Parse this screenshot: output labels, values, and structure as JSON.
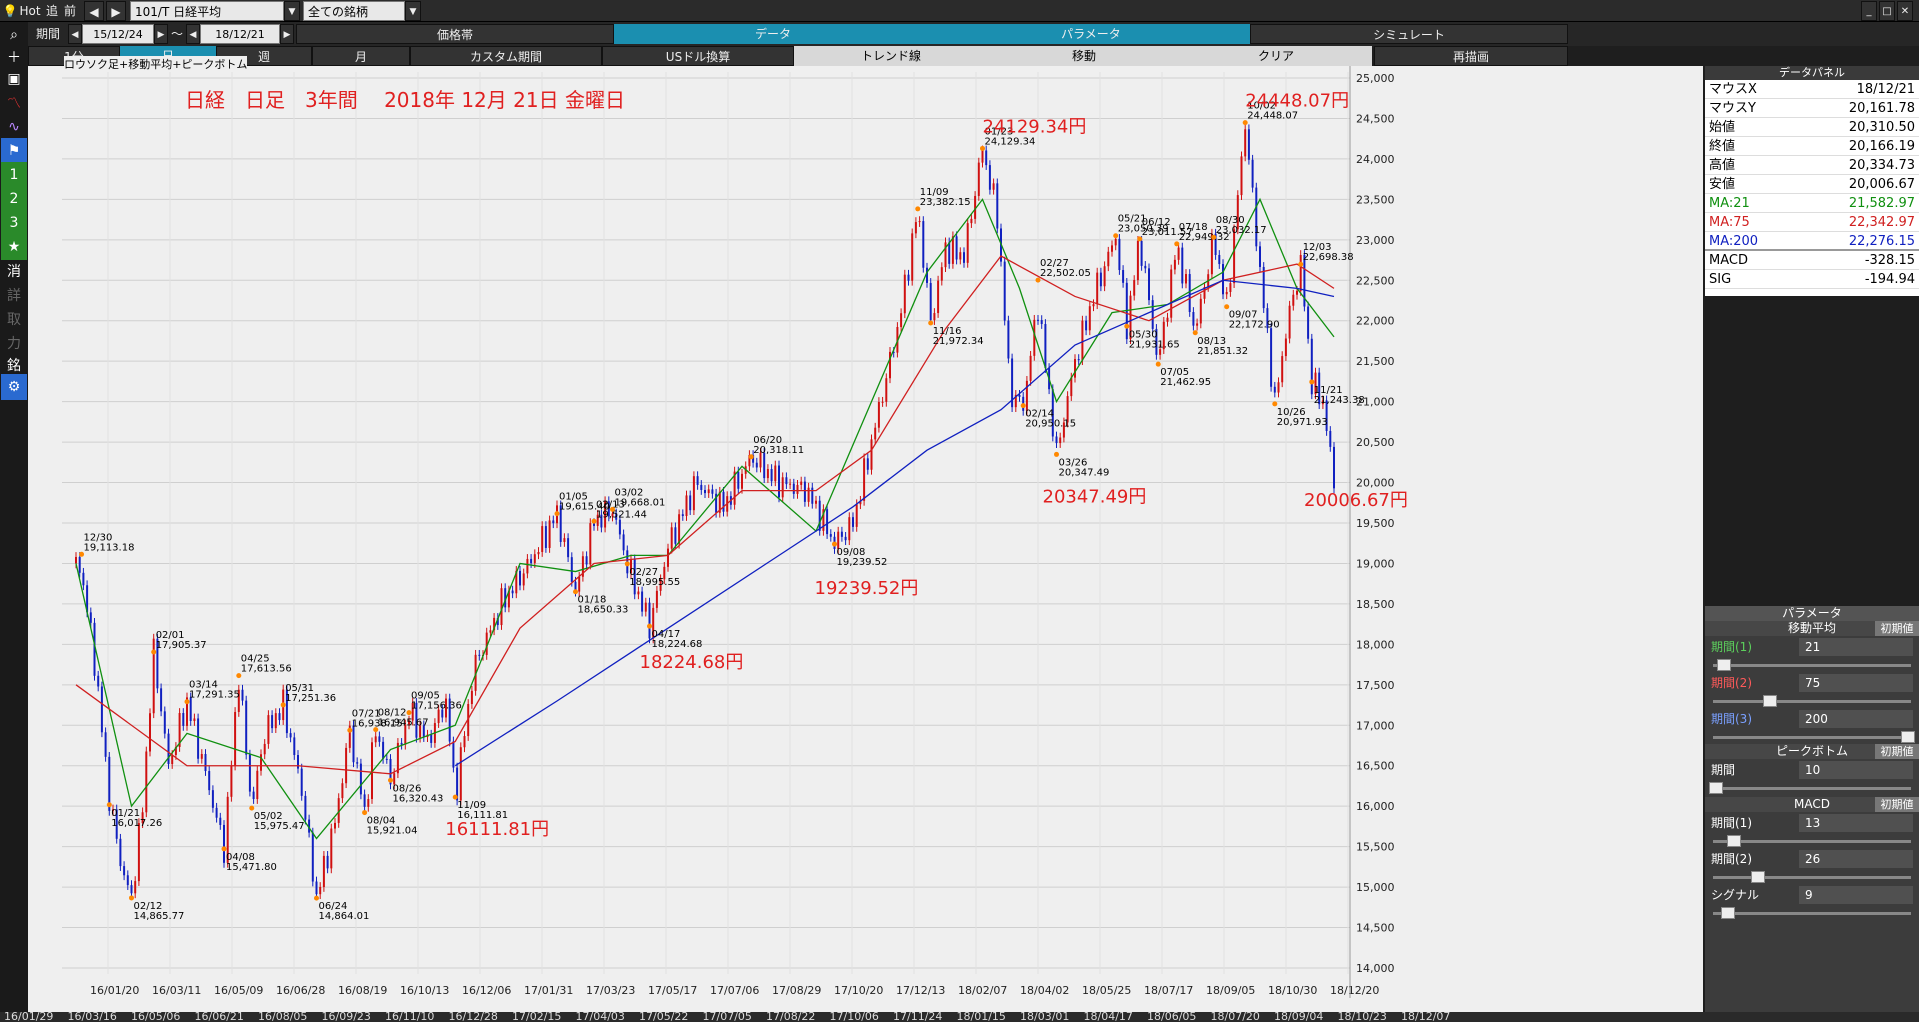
{
  "toolbar": {
    "hot": "Hot",
    "nav1": "追",
    "nav2": "前",
    "symbol": "101/T 日経平均",
    "filter": "全ての銘柄",
    "period_label": "期間",
    "start": "15/12/24",
    "sep": "～",
    "end": "18/12/21",
    "tabs": [
      "価格帯",
      "データ",
      "パラメータ",
      "シミュレート"
    ]
  },
  "timeframes": [
    "1分",
    "日",
    "週",
    "月",
    "カスタム期間",
    "USドル換算",
    "トレンド線",
    "移動",
    "クリア",
    "再描画"
  ],
  "left_tools": [
    "search-icon",
    "plus-icon",
    "camera-icon",
    "chart-icon",
    "wave-icon",
    "flag-icon",
    "1",
    "2",
    "3",
    "star-icon",
    "消",
    "詳",
    "取",
    "力",
    "銘",
    "gear-icon"
  ],
  "chart_data": {
    "type": "line",
    "title": "日経　日足　3年間　 2018年 12月 21日 金曜日",
    "subtitle": "ロウソク足+移動平均+ピークボトム",
    "ylim": [
      14000,
      25000
    ],
    "y_ticks": [
      "25,000",
      "24,500",
      "24,000",
      "23,500",
      "23,000",
      "22,500",
      "22,000",
      "21,500",
      "21,000",
      "20,500",
      "20,000",
      "19,500",
      "19,000",
      "18,500",
      "18,000",
      "17,500",
      "17,000",
      "16,500",
      "16,000",
      "15,500",
      "15,000",
      "14,500",
      "14,000"
    ],
    "x_ticks": [
      "16/01/20",
      "16/03/11",
      "16/05/09",
      "16/06/28",
      "16/08/19",
      "16/10/13",
      "16/12/06",
      "17/01/31",
      "17/03/23",
      "17/05/17",
      "17/07/06",
      "17/08/29",
      "17/10/20",
      "17/12/13",
      "18/02/07",
      "18/04/02",
      "18/05/25",
      "18/07/17",
      "18/09/05",
      "18/10/30",
      "18/12/20"
    ],
    "series": [
      {
        "name": "ロウソク足",
        "color": "#d01010",
        "values": [
          [
            0,
            19000
          ],
          [
            3,
            18900
          ],
          [
            10,
            17800
          ],
          [
            18,
            16100
          ],
          [
            25,
            15200
          ],
          [
            30,
            14866
          ],
          [
            36,
            16000
          ],
          [
            42,
            17900
          ],
          [
            50,
            16500
          ],
          [
            60,
            17291
          ],
          [
            70,
            16400
          ],
          [
            80,
            15472
          ],
          [
            88,
            17614
          ],
          [
            95,
            15975
          ],
          [
            102,
            16900
          ],
          [
            112,
            17251
          ],
          [
            122,
            16200
          ],
          [
            130,
            14864
          ],
          [
            140,
            15800
          ],
          [
            148,
            16938
          ],
          [
            156,
            15921
          ],
          [
            162,
            16945
          ],
          [
            170,
            16320
          ],
          [
            180,
            17156
          ],
          [
            190,
            16800
          ],
          [
            200,
            17300
          ],
          [
            205,
            16112
          ],
          [
            215,
            17700
          ],
          [
            230,
            18500
          ],
          [
            245,
            19000
          ],
          [
            260,
            19615
          ],
          [
            270,
            18650
          ],
          [
            280,
            19521
          ],
          [
            290,
            19668
          ],
          [
            298,
            18996
          ],
          [
            310,
            18224
          ],
          [
            320,
            19200
          ],
          [
            335,
            20000
          ],
          [
            350,
            19700
          ],
          [
            365,
            20318
          ],
          [
            380,
            20000
          ],
          [
            395,
            19900
          ],
          [
            410,
            19240
          ],
          [
            420,
            19500
          ],
          [
            430,
            20500
          ],
          [
            445,
            22000
          ],
          [
            455,
            23382
          ],
          [
            462,
            21972
          ],
          [
            470,
            22900
          ],
          [
            480,
            22800
          ],
          [
            490,
            24129
          ],
          [
            498,
            23300
          ],
          [
            505,
            21100
          ],
          [
            512,
            20950
          ],
          [
            520,
            22200
          ],
          [
            530,
            20347
          ],
          [
            540,
            21500
          ],
          [
            550,
            22300
          ],
          [
            562,
            23050
          ],
          [
            568,
            21932
          ],
          [
            575,
            23012
          ],
          [
            585,
            21463
          ],
          [
            595,
            22949
          ],
          [
            605,
            21851
          ],
          [
            615,
            23032
          ],
          [
            622,
            22173
          ],
          [
            632,
            24448
          ],
          [
            640,
            22600
          ],
          [
            648,
            20972
          ],
          [
            655,
            22000
          ],
          [
            662,
            22698
          ],
          [
            668,
            21243
          ],
          [
            674,
            21000
          ],
          [
            680,
            20007
          ]
        ]
      },
      {
        "name": "MA:21",
        "color": "#109010",
        "values": [
          [
            0,
            19000
          ],
          [
            30,
            16000
          ],
          [
            60,
            16900
          ],
          [
            100,
            16600
          ],
          [
            130,
            15600
          ],
          [
            170,
            16700
          ],
          [
            205,
            17000
          ],
          [
            240,
            19000
          ],
          [
            270,
            18900
          ],
          [
            300,
            19100
          ],
          [
            320,
            19100
          ],
          [
            360,
            20200
          ],
          [
            400,
            19400
          ],
          [
            430,
            21000
          ],
          [
            460,
            22600
          ],
          [
            490,
            23500
          ],
          [
            510,
            22400
          ],
          [
            530,
            21000
          ],
          [
            560,
            22100
          ],
          [
            590,
            22200
          ],
          [
            620,
            22600
          ],
          [
            640,
            23500
          ],
          [
            660,
            22400
          ],
          [
            680,
            21800
          ]
        ]
      },
      {
        "name": "MA:75",
        "color": "#d02020",
        "values": [
          [
            0,
            17500
          ],
          [
            60,
            16500
          ],
          [
            120,
            16500
          ],
          [
            170,
            16400
          ],
          [
            205,
            16800
          ],
          [
            240,
            18200
          ],
          [
            280,
            19000
          ],
          [
            320,
            19100
          ],
          [
            360,
            19900
          ],
          [
            400,
            19900
          ],
          [
            430,
            20400
          ],
          [
            470,
            21900
          ],
          [
            500,
            22800
          ],
          [
            540,
            22300
          ],
          [
            580,
            22000
          ],
          [
            620,
            22500
          ],
          [
            660,
            22700
          ],
          [
            680,
            22400
          ]
        ]
      },
      {
        "name": "MA:200",
        "color": "#1020c0",
        "values": [
          [
            205,
            16500
          ],
          [
            260,
            17300
          ],
          [
            320,
            18200
          ],
          [
            380,
            19100
          ],
          [
            420,
            19700
          ],
          [
            460,
            20400
          ],
          [
            500,
            20900
          ],
          [
            540,
            21700
          ],
          [
            580,
            22100
          ],
          [
            620,
            22500
          ],
          [
            660,
            22400
          ],
          [
            680,
            22300
          ]
        ]
      }
    ],
    "peaks": [
      {
        "date": "12/30",
        "value": "19,113.18"
      },
      {
        "date": "02/01",
        "value": "17,905.37"
      },
      {
        "date": "03/14",
        "value": "17,291.35"
      },
      {
        "date": "04/25",
        "value": "17,613.56"
      },
      {
        "date": "05/31",
        "value": "17,251.36"
      },
      {
        "date": "07/21",
        "value": "16,938.15"
      },
      {
        "date": "08/12",
        "value": "16,945.67"
      },
      {
        "date": "09/05",
        "value": "17,156.36"
      },
      {
        "date": "01/05",
        "value": "19,615.40"
      },
      {
        "date": "02/13",
        "value": "19,521.44"
      },
      {
        "date": "03/02",
        "value": "19,668.01"
      },
      {
        "date": "06/20",
        "value": "20,318.11"
      },
      {
        "date": "11/09",
        "value": "23,382.15"
      },
      {
        "date": "01/23",
        "value": "24,129.34"
      },
      {
        "date": "02/27",
        "value": "22,502.05"
      },
      {
        "date": "05/21",
        "value": "23,050.39"
      },
      {
        "date": "06/12",
        "value": "23,011.57"
      },
      {
        "date": "07/18",
        "value": "22,949.32"
      },
      {
        "date": "08/30",
        "value": "23,032.17"
      },
      {
        "date": "10/02",
        "value": "24,448.07"
      },
      {
        "date": "12/03",
        "value": "22,698.38"
      }
    ],
    "troughs": [
      {
        "date": "01/21",
        "value": "16,017.26"
      },
      {
        "date": "02/12",
        "value": "14,865.77"
      },
      {
        "date": "04/08",
        "value": "15,471.80"
      },
      {
        "date": "05/02",
        "value": "15,975.47"
      },
      {
        "date": "06/24",
        "value": "14,864.01"
      },
      {
        "date": "08/04",
        "value": "15,921.04"
      },
      {
        "date": "08/26",
        "value": "16,320.43"
      },
      {
        "date": "11/09",
        "value": "16,111.81"
      },
      {
        "date": "01/18",
        "value": "18,650.33"
      },
      {
        "date": "02/27",
        "value": "18,995.55"
      },
      {
        "date": "04/17",
        "value": "18,224.68"
      },
      {
        "date": "09/08",
        "value": "19,239.52"
      },
      {
        "date": "11/16",
        "value": "21,972.34"
      },
      {
        "date": "02/14",
        "value": "20,950.15"
      },
      {
        "date": "03/26",
        "value": "20,347.49"
      },
      {
        "date": "05/30",
        "value": "21,931.65"
      },
      {
        "date": "07/05",
        "value": "21,462.95"
      },
      {
        "date": "08/13",
        "value": "21,851.32"
      },
      {
        "date": "09/07",
        "value": "22,172.90"
      },
      {
        "date": "10/26",
        "value": "20,971.93"
      },
      {
        "date": "11/21",
        "value": "21,243.38"
      }
    ],
    "annotations": [
      "24129.34円",
      "24448.07円",
      "16111.81円",
      "18224.68円",
      "19239.52円",
      "20347.49円",
      "20006.67円"
    ]
  },
  "data_panel": {
    "title": "データパネル",
    "rows": [
      {
        "k": "マウスX",
        "v": "18/12/21",
        "c": "#000000"
      },
      {
        "k": "マウスY",
        "v": "20,161.78",
        "c": "#000000"
      },
      {
        "k": "始値",
        "v": "20,310.50",
        "c": "#000000"
      },
      {
        "k": "終値",
        "v": "20,166.19",
        "c": "#000000"
      },
      {
        "k": "高値",
        "v": "20,334.73",
        "c": "#000000"
      },
      {
        "k": "安値",
        "v": "20,006.67",
        "c": "#000000"
      },
      {
        "k": "MA:21",
        "v": "21,582.97",
        "c": "#109010"
      },
      {
        "k": "MA:75",
        "v": "22,342.97",
        "c": "#d02020"
      },
      {
        "k": "MA:200",
        "v": "22,276.15",
        "c": "#1020c0"
      },
      {
        "k": "MACD",
        "v": "-328.15",
        "c": "#000000"
      },
      {
        "k": "SIG",
        "v": "-194.94",
        "c": "#000000"
      }
    ]
  },
  "params": {
    "title": "パラメータ",
    "init": "初期値",
    "ma": {
      "title": "移動平均",
      "p1": "期間(1)",
      "v1": "21",
      "p2": "期間(2)",
      "v2": "75",
      "p3": "期間(3)",
      "v3": "200"
    },
    "pb": {
      "title": "ピークボトム",
      "p": "期間",
      "v": "10"
    },
    "macd": {
      "title": "MACD",
      "p1": "期間(1)",
      "v1": "13",
      "p2": "期間(2)",
      "v2": "26",
      "sig": "シグナル",
      "vs": "9"
    }
  },
  "bottom_dates": [
    "16/01/29",
    "16/03/16",
    "16/05/06",
    "16/06/21",
    "16/08/05",
    "16/09/23",
    "16/11/10",
    "16/12/28",
    "17/02/15",
    "17/04/03",
    "17/05/22",
    "17/07/05",
    "17/08/22",
    "17/10/06",
    "17/11/24",
    "18/01/15",
    "18/03/01",
    "18/04/17",
    "18/06/05",
    "18/07/20",
    "18/09/04",
    "18/10/23",
    "18/12/07"
  ]
}
